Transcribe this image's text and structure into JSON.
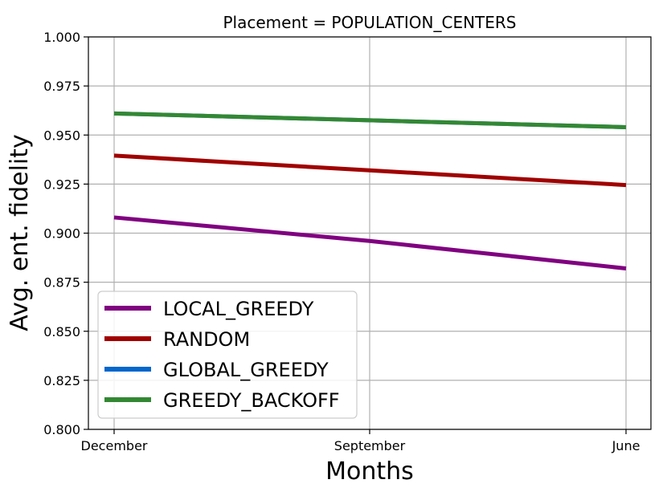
{
  "chart_data": {
    "type": "line",
    "title": "Placement = POPULATION_CENTERS",
    "xlabel": "Months",
    "ylabel": "Avg. ent. fidelity",
    "categories": [
      "December",
      "September",
      "June"
    ],
    "ylim": [
      0.8,
      1.0
    ],
    "yticks": [
      0.8,
      0.825,
      0.85,
      0.875,
      0.9,
      0.925,
      0.95,
      0.975,
      1.0
    ],
    "ytick_labels": [
      "0.800",
      "0.825",
      "0.850",
      "0.875",
      "0.900",
      "0.925",
      "0.950",
      "0.975",
      "1.000"
    ],
    "grid": true,
    "legend_position": "bottom-left",
    "series": [
      {
        "name": "LOCAL_GREEDY",
        "color": "#800080",
        "values": [
          0.908,
          0.896,
          0.882
        ]
      },
      {
        "name": "RANDOM",
        "color": "#a00000",
        "values": [
          0.9395,
          0.932,
          0.9245
        ]
      },
      {
        "name": "GLOBAL_GREEDY",
        "color": "#0066cc",
        "values": [
          0.961,
          0.9575,
          0.954
        ]
      },
      {
        "name": "GREEDY_BACKOFF",
        "color": "#338833",
        "values": [
          0.961,
          0.9575,
          0.954
        ]
      }
    ]
  }
}
